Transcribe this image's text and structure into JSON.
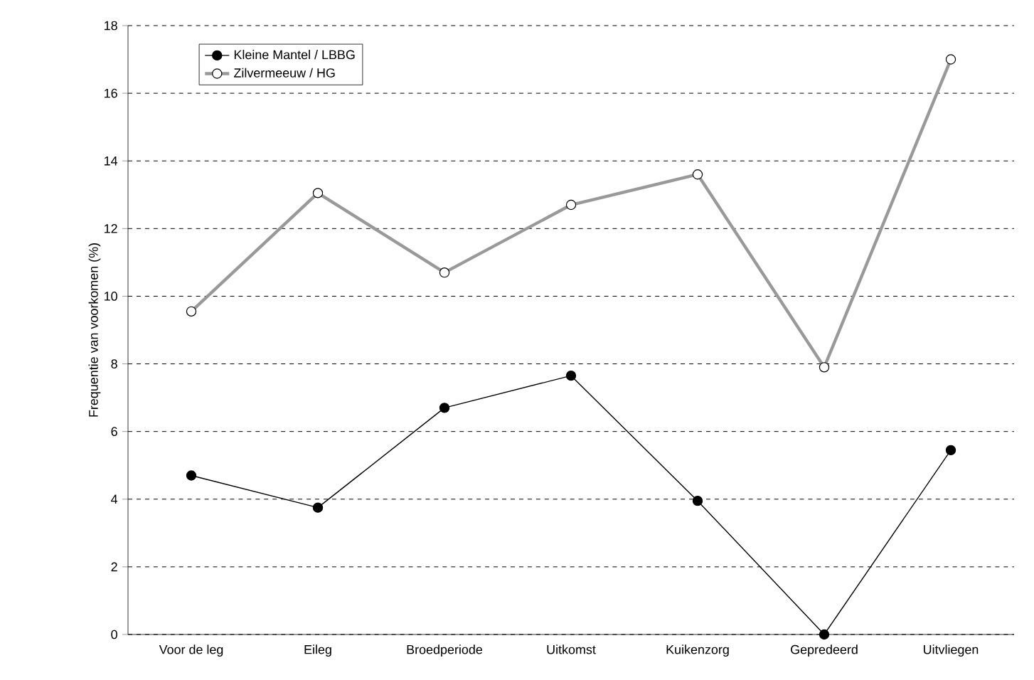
{
  "chart_data": {
    "type": "line",
    "ylabel": "Frequentie van voorkomen (%)",
    "categories": [
      "Voor de leg",
      "Eileg",
      "Broedperiode",
      "Uitkomst",
      "Kuikenzorg",
      "Gepredeerd",
      "Uitvliegen"
    ],
    "series": [
      {
        "name": "Kleine Mantel / LBBG",
        "color": "#000000",
        "values": [
          4.7,
          3.75,
          6.7,
          7.65,
          3.95,
          0,
          5.45
        ]
      },
      {
        "name": "Zilvermeeuw / HG",
        "color": "#999999",
        "values": [
          9.55,
          13.05,
          10.7,
          12.7,
          13.6,
          7.9,
          17.0
        ]
      }
    ],
    "ylim": [
      0,
      18
    ],
    "yticks": [
      0,
      2,
      4,
      6,
      8,
      10,
      12,
      14,
      16,
      18
    ],
    "grid": "y",
    "legend": "top left",
    "marker": "circle",
    "line_style": "solid"
  }
}
